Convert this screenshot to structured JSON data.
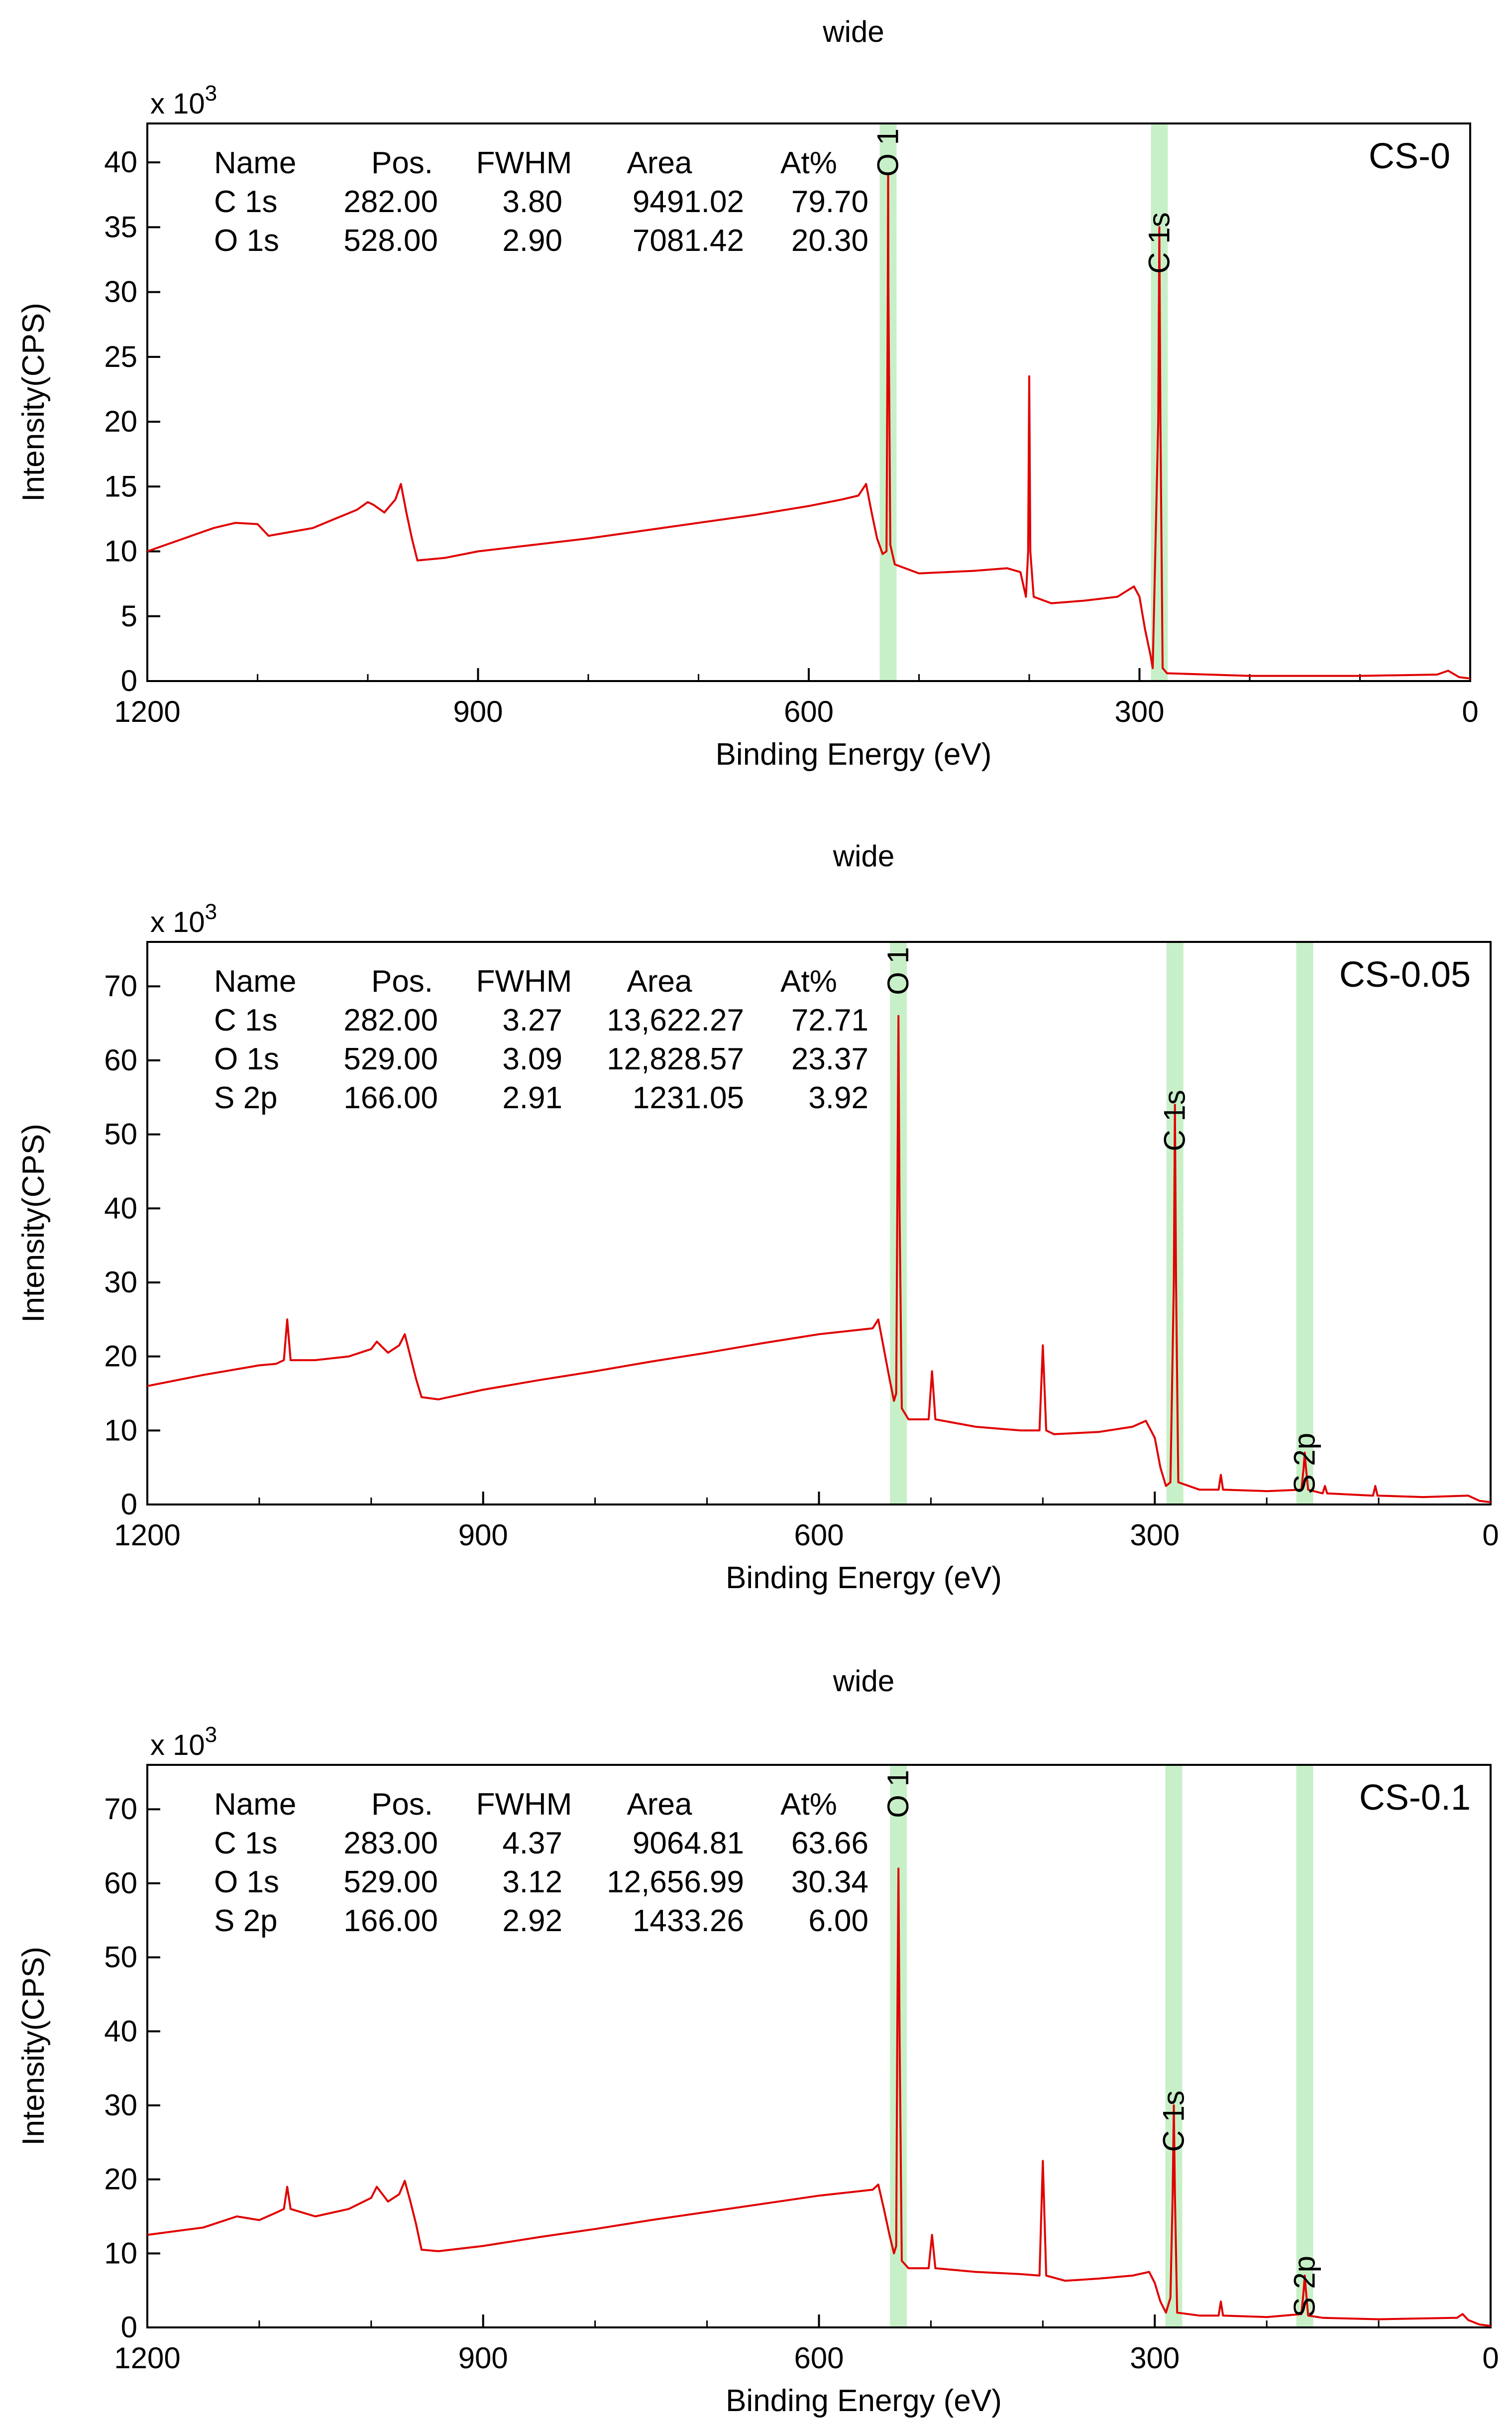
{
  "chart_data": [
    {
      "type": "line",
      "title": "wide",
      "sample_label": "CS-0",
      "xlabel": "Binding Energy (eV)",
      "ylabel": "Intensity(CPS)",
      "y_multiplier": "x 10",
      "y_multiplier_exp": "3",
      "xlim": [
        1200,
        0
      ],
      "ylim": [
        0,
        43
      ],
      "xticks": [
        "1200",
        "900",
        "600",
        "300",
        "0"
      ],
      "yticks": [
        "0",
        "5",
        "10",
        "15",
        "20",
        "25",
        "30",
        "35",
        "40"
      ],
      "line_color": "#e00000",
      "band_color": "#c8f0c8",
      "table": {
        "headers": [
          "Name",
          "Pos.",
          "FWHM",
          "Area",
          "At%"
        ],
        "rows": [
          [
            "C 1s",
            "282.00",
            "3.80",
            "9491.02",
            "79.70"
          ],
          [
            "O 1s",
            "528.00",
            "2.90",
            "7081.42",
            "20.30"
          ]
        ]
      },
      "peak_labels": [
        {
          "label": "O 1",
          "energy": 528
        },
        {
          "label": "C 1s",
          "energy": 282
        }
      ],
      "spectrum": [
        [
          1200,
          10
        ],
        [
          1180,
          10.6
        ],
        [
          1160,
          11.2
        ],
        [
          1140,
          11.8
        ],
        [
          1120,
          12.2
        ],
        [
          1100,
          12.1
        ],
        [
          1090,
          11.2
        ],
        [
          1070,
          11.5
        ],
        [
          1050,
          11.8
        ],
        [
          1030,
          12.5
        ],
        [
          1010,
          13.2
        ],
        [
          1000,
          13.8
        ],
        [
          995,
          13.6
        ],
        [
          985,
          13
        ],
        [
          975,
          14
        ],
        [
          970,
          15.2
        ],
        [
          965,
          13
        ],
        [
          960,
          11
        ],
        [
          955,
          9.3
        ],
        [
          930,
          9.5
        ],
        [
          900,
          10
        ],
        [
          850,
          10.5
        ],
        [
          800,
          11
        ],
        [
          750,
          11.6
        ],
        [
          700,
          12.2
        ],
        [
          650,
          12.8
        ],
        [
          600,
          13.5
        ],
        [
          570,
          14
        ],
        [
          555,
          14.3
        ],
        [
          548,
          15.2
        ],
        [
          543,
          13
        ],
        [
          538,
          11
        ],
        [
          533,
          9.8
        ],
        [
          529.5,
          10
        ],
        [
          528.3,
          30
        ],
        [
          528,
          39
        ],
        [
          527.7,
          30
        ],
        [
          526,
          10.5
        ],
        [
          522,
          9
        ],
        [
          500,
          8.3
        ],
        [
          450,
          8.5
        ],
        [
          420,
          8.7
        ],
        [
          408,
          8.4
        ],
        [
          403,
          6.5
        ],
        [
          401,
          10
        ],
        [
          400,
          23.5
        ],
        [
          399,
          10
        ],
        [
          396,
          6.5
        ],
        [
          380,
          6
        ],
        [
          350,
          6.2
        ],
        [
          320,
          6.5
        ],
        [
          305,
          7.3
        ],
        [
          300,
          6.5
        ],
        [
          295,
          4
        ],
        [
          290,
          2
        ],
        [
          288,
          1
        ],
        [
          283,
          20
        ],
        [
          282,
          35
        ],
        [
          281,
          20
        ],
        [
          279,
          1
        ],
        [
          275,
          0.6
        ],
        [
          200,
          0.4
        ],
        [
          100,
          0.4
        ],
        [
          30,
          0.5
        ],
        [
          20,
          0.8
        ],
        [
          10,
          0.3
        ],
        [
          0,
          0.2
        ]
      ]
    },
    {
      "type": "line",
      "title": "wide",
      "sample_label": "CS-0.05",
      "xlabel": "Binding Energy (eV)",
      "ylabel": "Intensity(CPS)",
      "y_multiplier": "x 10",
      "y_multiplier_exp": "3",
      "xlim": [
        1200,
        0
      ],
      "ylim": [
        0,
        76
      ],
      "xticks": [
        "1200",
        "900",
        "600",
        "300",
        "0"
      ],
      "yticks": [
        "0",
        "10",
        "20",
        "30",
        "40",
        "50",
        "60",
        "70"
      ],
      "line_color": "#e00000",
      "band_color": "#c8f0c8",
      "table": {
        "headers": [
          "Name",
          "Pos.",
          "FWHM",
          "Area",
          "At%"
        ],
        "rows": [
          [
            "C 1s",
            "282.00",
            "3.27",
            "13,622.27",
            "72.71"
          ],
          [
            "O 1s",
            "529.00",
            "3.09",
            "12,828.57",
            "23.37"
          ],
          [
            "S 2p",
            "166.00",
            "2.91",
            "1231.05",
            "3.92"
          ]
        ]
      },
      "peak_labels": [
        {
          "label": "O 1",
          "energy": 529
        },
        {
          "label": "C 1s",
          "energy": 282
        },
        {
          "label": "S 2p",
          "energy": 166
        }
      ],
      "spectrum": [
        [
          1200,
          16
        ],
        [
          1150,
          17.5
        ],
        [
          1100,
          18.8
        ],
        [
          1085,
          19
        ],
        [
          1078,
          19.5
        ],
        [
          1075,
          25
        ],
        [
          1072,
          19.5
        ],
        [
          1050,
          19.5
        ],
        [
          1020,
          20
        ],
        [
          1000,
          21
        ],
        [
          995,
          22
        ],
        [
          985,
          20.5
        ],
        [
          975,
          21.5
        ],
        [
          970,
          23
        ],
        [
          965,
          20
        ],
        [
          960,
          17
        ],
        [
          955,
          14.5
        ],
        [
          940,
          14.2
        ],
        [
          900,
          15.5
        ],
        [
          850,
          16.8
        ],
        [
          800,
          18
        ],
        [
          750,
          19.3
        ],
        [
          700,
          20.5
        ],
        [
          650,
          21.8
        ],
        [
          600,
          23
        ],
        [
          570,
          23.5
        ],
        [
          552,
          23.8
        ],
        [
          547,
          25
        ],
        [
          542,
          21
        ],
        [
          537,
          17
        ],
        [
          533,
          14
        ],
        [
          531,
          15
        ],
        [
          530,
          40
        ],
        [
          529,
          66
        ],
        [
          528,
          40
        ],
        [
          526,
          13
        ],
        [
          520,
          11.5
        ],
        [
          502,
          11.5
        ],
        [
          499,
          18
        ],
        [
          496,
          11.5
        ],
        [
          460,
          10.5
        ],
        [
          420,
          10
        ],
        [
          403,
          10
        ],
        [
          400,
          21.5
        ],
        [
          397,
          10
        ],
        [
          390,
          9.5
        ],
        [
          350,
          9.8
        ],
        [
          320,
          10.5
        ],
        [
          308,
          11.3
        ],
        [
          300,
          9
        ],
        [
          295,
          5
        ],
        [
          290,
          2.5
        ],
        [
          286,
          3
        ],
        [
          283,
          30
        ],
        [
          282,
          54
        ],
        [
          281,
          30
        ],
        [
          279,
          3
        ],
        [
          260,
          2
        ],
        [
          243,
          2
        ],
        [
          241,
          4
        ],
        [
          239,
          2
        ],
        [
          200,
          1.8
        ],
        [
          169,
          2
        ],
        [
          167,
          5
        ],
        [
          166,
          7
        ],
        [
          165,
          5
        ],
        [
          163,
          2
        ],
        [
          150,
          1.5
        ],
        [
          148,
          2.5
        ],
        [
          146,
          1.5
        ],
        [
          105,
          1.2
        ],
        [
          103,
          2.5
        ],
        [
          101,
          1.2
        ],
        [
          60,
          1
        ],
        [
          20,
          1.2
        ],
        [
          10,
          0.5
        ],
        [
          0,
          0.3
        ]
      ]
    },
    {
      "type": "line",
      "title": "wide",
      "sample_label": "CS-0.1",
      "xlabel": "Binding Energy (eV)",
      "ylabel": "Intensity(CPS)",
      "y_multiplier": "x 10",
      "y_multiplier_exp": "3",
      "xlim": [
        1200,
        0
      ],
      "ylim": [
        0,
        76
      ],
      "xticks": [
        "1200",
        "900",
        "600",
        "300",
        "0"
      ],
      "yticks": [
        "0",
        "10",
        "20",
        "30",
        "40",
        "50",
        "60",
        "70"
      ],
      "line_color": "#e00000",
      "band_color": "#c8f0c8",
      "table": {
        "headers": [
          "Name",
          "Pos.",
          "FWHM",
          "Area",
          "At%"
        ],
        "rows": [
          [
            "C 1s",
            "283.00",
            "4.37",
            "9064.81",
            "63.66"
          ],
          [
            "O 1s",
            "529.00",
            "3.12",
            "12,656.99",
            "30.34"
          ],
          [
            "S 2p",
            "166.00",
            "2.92",
            "1433.26",
            "6.00"
          ]
        ]
      },
      "peak_labels": [
        {
          "label": "O 1",
          "energy": 529
        },
        {
          "label": "C 1s",
          "energy": 283
        },
        {
          "label": "S 2p",
          "energy": 166
        }
      ],
      "spectrum": [
        [
          1200,
          12.5
        ],
        [
          1150,
          13.5
        ],
        [
          1120,
          15
        ],
        [
          1100,
          14.5
        ],
        [
          1085,
          15.5
        ],
        [
          1078,
          16
        ],
        [
          1075,
          19
        ],
        [
          1072,
          16
        ],
        [
          1050,
          15
        ],
        [
          1020,
          16
        ],
        [
          1000,
          17.5
        ],
        [
          995,
          19
        ],
        [
          985,
          17
        ],
        [
          975,
          18
        ],
        [
          970,
          19.8
        ],
        [
          965,
          17
        ],
        [
          960,
          14
        ],
        [
          955,
          10.5
        ],
        [
          940,
          10.3
        ],
        [
          900,
          11
        ],
        [
          850,
          12.2
        ],
        [
          800,
          13.3
        ],
        [
          750,
          14.5
        ],
        [
          700,
          15.6
        ],
        [
          650,
          16.7
        ],
        [
          600,
          17.8
        ],
        [
          570,
          18.3
        ],
        [
          552,
          18.6
        ],
        [
          547,
          19.3
        ],
        [
          542,
          16
        ],
        [
          537,
          12.5
        ],
        [
          533,
          10
        ],
        [
          531,
          11
        ],
        [
          530,
          40
        ],
        [
          529,
          62
        ],
        [
          528,
          40
        ],
        [
          526,
          9
        ],
        [
          520,
          8
        ],
        [
          502,
          8
        ],
        [
          499,
          12.5
        ],
        [
          496,
          8
        ],
        [
          460,
          7.5
        ],
        [
          420,
          7.2
        ],
        [
          403,
          7
        ],
        [
          400,
          22.5
        ],
        [
          397,
          7
        ],
        [
          380,
          6.3
        ],
        [
          350,
          6.6
        ],
        [
          320,
          7
        ],
        [
          305,
          7.5
        ],
        [
          300,
          6
        ],
        [
          295,
          3.5
        ],
        [
          290,
          2
        ],
        [
          286,
          4
        ],
        [
          284,
          18
        ],
        [
          283,
          30
        ],
        [
          282,
          18
        ],
        [
          280,
          2
        ],
        [
          260,
          1.6
        ],
        [
          243,
          1.6
        ],
        [
          241,
          3.5
        ],
        [
          239,
          1.6
        ],
        [
          200,
          1.4
        ],
        [
          169,
          1.8
        ],
        [
          167,
          5
        ],
        [
          166,
          7
        ],
        [
          165,
          5
        ],
        [
          163,
          1.6
        ],
        [
          150,
          1.3
        ],
        [
          100,
          1.1
        ],
        [
          30,
          1.3
        ],
        [
          25,
          1.8
        ],
        [
          20,
          1
        ],
        [
          10,
          0.4
        ],
        [
          0,
          0.2
        ]
      ]
    }
  ]
}
